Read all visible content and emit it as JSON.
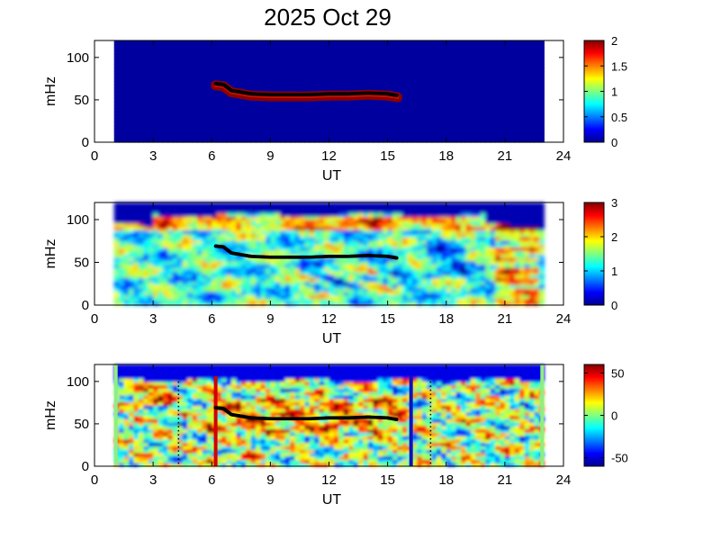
{
  "title": "2025 Oct 29",
  "colors": {
    "background": "#000080",
    "wave_trace": "#000000",
    "marker_left": "#d40000",
    "marker_right": "#1010c0"
  },
  "chart_data": [
    {
      "type": "heatmap",
      "title": "2025 Oct 29",
      "xlabel": "UT",
      "ylabel": "mHz",
      "xlim": [
        0,
        24
      ],
      "ylim": [
        0,
        120
      ],
      "xticks": [
        0,
        3,
        6,
        9,
        12,
        15,
        18,
        21,
        24
      ],
      "yticks": [
        0,
        50,
        100
      ],
      "data_x_range": [
        1,
        23
      ],
      "colorbar": {
        "min": 0,
        "max": 2,
        "ticks": [
          0,
          0.5,
          1,
          1.5,
          2
        ],
        "tick_labels": [
          "0",
          "0.5",
          "1",
          "1.5",
          "2"
        ]
      },
      "trace": {
        "x": [
          6.2,
          6.6,
          7.0,
          7.5,
          8.0,
          9.0,
          10.0,
          11.0,
          12.0,
          13.0,
          14.0,
          15.0,
          15.5
        ],
        "y": [
          69,
          68,
          61,
          59,
          57,
          56,
          56,
          56,
          57,
          57,
          58,
          57,
          55
        ]
      }
    },
    {
      "type": "heatmap",
      "xlabel": "UT",
      "ylabel": "mHz",
      "xlim": [
        0,
        24
      ],
      "ylim": [
        0,
        120
      ],
      "xticks": [
        0,
        3,
        6,
        9,
        12,
        15,
        18,
        21,
        24
      ],
      "yticks": [
        0,
        50,
        100
      ],
      "data_x_range": [
        1,
        23
      ],
      "colorbar": {
        "min": 0,
        "max": 3,
        "ticks": [
          0,
          1,
          2,
          3
        ],
        "tick_labels": [
          "0",
          "1",
          "2",
          "3"
        ]
      },
      "trace": {
        "x": [
          6.2,
          6.6,
          7.0,
          7.5,
          8.0,
          9.0,
          10.0,
          11.0,
          12.0,
          13.0,
          14.0,
          15.0,
          15.5
        ],
        "y": [
          69,
          68,
          61,
          59,
          57,
          56,
          56,
          56,
          57,
          57,
          58,
          57,
          55
        ]
      }
    },
    {
      "type": "heatmap",
      "xlabel": "UT",
      "ylabel": "mHz",
      "xlim": [
        0,
        24
      ],
      "ylim": [
        0,
        120
      ],
      "xticks": [
        0,
        3,
        6,
        9,
        12,
        15,
        18,
        21,
        24
      ],
      "yticks": [
        0,
        50,
        100
      ],
      "data_x_range": [
        1,
        23
      ],
      "colorbar": {
        "min": -60,
        "max": 60,
        "ticks": [
          50,
          0,
          -50
        ],
        "tick_labels": [
          "50",
          "0",
          "-50"
        ]
      },
      "trace": {
        "x": [
          6.2,
          6.6,
          7.0,
          7.5,
          8.0,
          9.0,
          10.0,
          11.0,
          12.0,
          13.0,
          14.0,
          15.0,
          15.5
        ],
        "y": [
          69,
          68,
          61,
          59,
          57,
          56,
          56,
          56,
          57,
          57,
          58,
          57,
          55
        ]
      },
      "vertical_markers": [
        {
          "x": 6.2,
          "color": "#d40000",
          "style": "solid"
        },
        {
          "x": 16.2,
          "color": "#1010c0",
          "style": "solid"
        },
        {
          "x": 4.3,
          "color": "#000000",
          "style": "dotted"
        },
        {
          "x": 17.2,
          "color": "#000000",
          "style": "dotted"
        }
      ]
    }
  ]
}
